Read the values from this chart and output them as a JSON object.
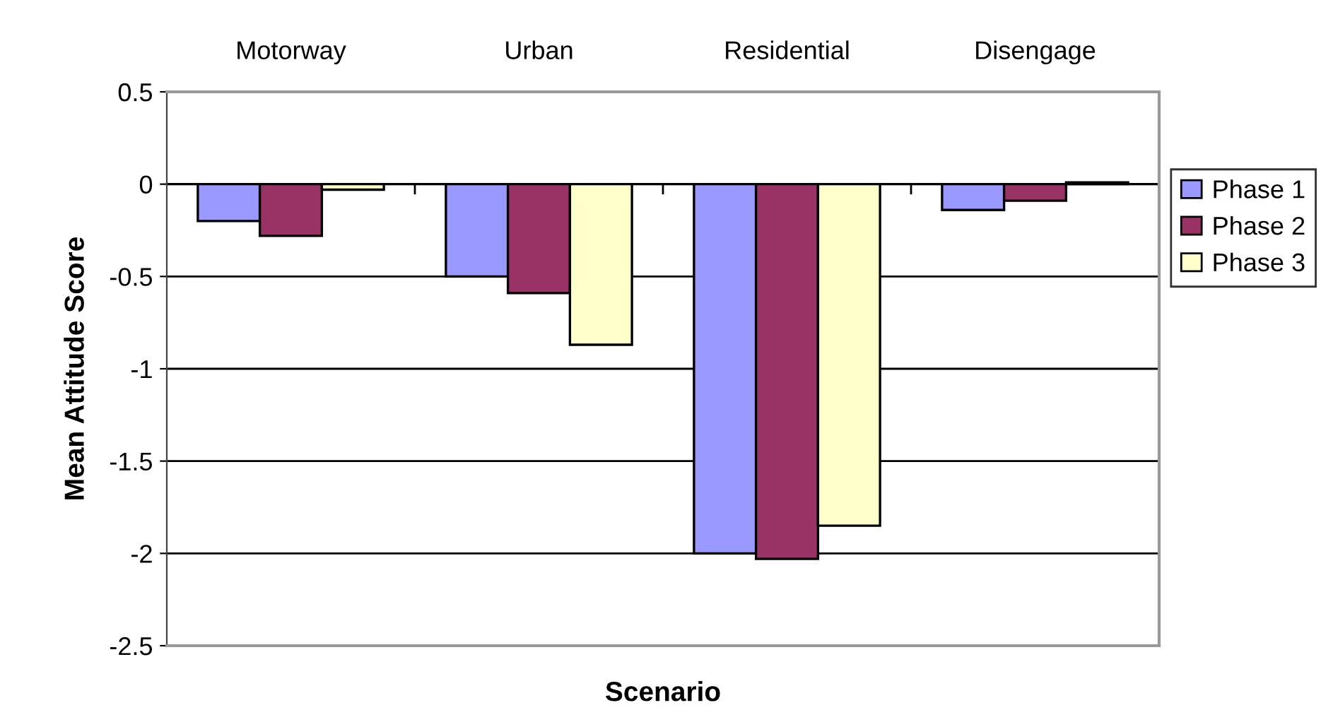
{
  "chart_data": {
    "type": "bar",
    "xlabel": "Scenario",
    "ylabel": "Mean Attitude Score",
    "categories": [
      "Motorway",
      "Urban",
      "Residential",
      "Disengage"
    ],
    "series": [
      {
        "name": "Phase 1",
        "color": "#9999ff",
        "values": [
          -0.2,
          -0.5,
          -2.0,
          -0.14
        ]
      },
      {
        "name": "Phase 2",
        "color": "#993366",
        "values": [
          -0.28,
          -0.59,
          -2.03,
          -0.09
        ]
      },
      {
        "name": "Phase 3",
        "color": "#ffffcc",
        "values": [
          -0.03,
          -0.87,
          -1.85,
          0.01
        ]
      }
    ],
    "ylim": [
      -2.5,
      0.5
    ],
    "yticks": [
      -2.5,
      -2,
      -1.5,
      -1,
      -0.5,
      0,
      0.5
    ],
    "grid": "y",
    "legend": "right"
  }
}
